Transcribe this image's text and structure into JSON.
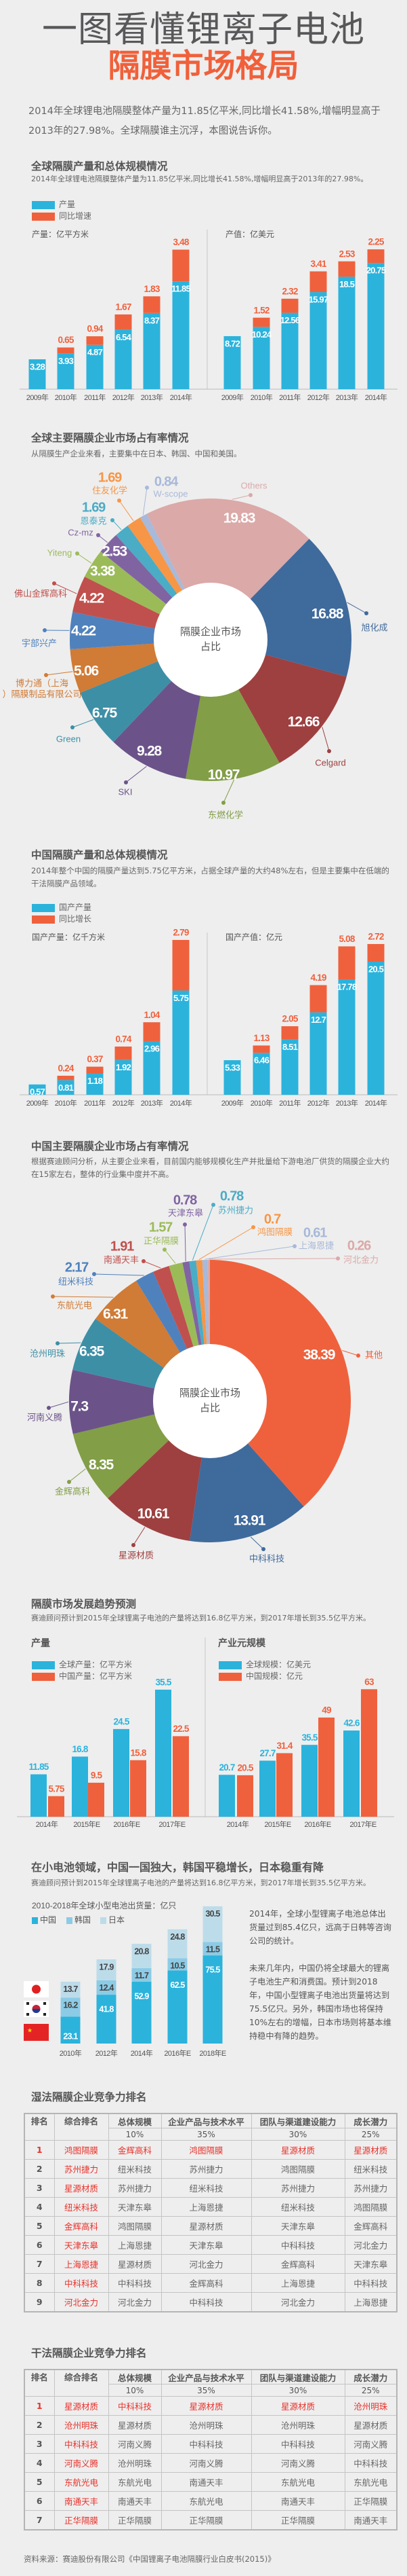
{
  "header": {
    "title_line1": "一图看懂锂离子电池",
    "title_line2": "隔膜市场格局"
  },
  "intro": "2014年全球锂电池隔膜整体产量为11.85亿平米,同比增长41.58%,增幅明显高于2013年的27.98%。全球隔膜谁主沉浮，本图说告诉你。",
  "colors": {
    "blue": "#2bb3dc",
    "orange": "#ef613d",
    "text": "#555555",
    "background": "#eeeeee"
  },
  "section_global_production": {
    "title": "全球隔膜产量和总体规模情况",
    "subtitle": "2014年全球锂电池隔膜整体产量为11.85亿平米,同比增长41.58%,增幅明显高于2013年的27.98%。",
    "legend": [
      "产量",
      "同比增速"
    ]
  },
  "section_global_share": {
    "title": "全球主要隔膜企业市场占有率情况",
    "subtitle": "从隔膜生产企业来看，主要集中在日本、韩国、中国和美国。",
    "center_label": [
      "隔膜企业市场",
      "占比"
    ]
  },
  "section_china_production": {
    "title": "中国隔膜产量和总体规模情况",
    "subtitle": "2014年整个中国的隔膜产量达到5.75亿平方米，占据全球产量的大约48%左右，但是主要集中在低端的干法隔膜产品领域。",
    "legend": [
      "国产产量",
      "同比增长"
    ]
  },
  "section_china_share": {
    "title": "中国主要隔膜企业市场占有率情况",
    "subtitle": "根据赛迪顾问分析，从主要企业来看，目前国内能够规模化生产并批量给下游电池厂供货的隔膜企业大约在15家左右，整体的行业集中度并不高。",
    "center_label": [
      "隔膜企业市场",
      "占比"
    ]
  },
  "section_forecast": {
    "title": "隔膜市场发展趋势预测",
    "subtitle": "赛迪顾问预计到2015年全球锂离子电池的产量将达到16.8亿平方米，到2017年增长到35.5亿平方米。",
    "left_title": "产量",
    "right_title": "产业元规模",
    "left_legend": [
      "全球产量：亿平方米",
      "中国产量：亿平方米"
    ],
    "right_legend": [
      "全球规模：亿美元",
      "中国规模：亿元"
    ]
  },
  "section_small_battery": {
    "title": "在小电池领域，中国一国独大，韩国平稳增长，日本稳重有降",
    "subtitle": "赛迪顾问预计到2015年全球锂离子电池的产量将达到16.8亿平方米，到2017年增长到35.5亿平方米。",
    "side_text_1": "2014年，全球小型锂离子电池总体出货量过到85.4亿只，远高于日韩等咨询公司的统计。",
    "side_text_2": "未来几年内，中国仍将全球最大的锂离子电池生产和消费国。预计到2018年，中国小型锂离子电池出货量将达到75.5亿只。另外，韩国市场也将保持10%左右的增幅，日本市场则将基本维持稳中有降的趋势。",
    "flags": [
      "japan-flag",
      "korea-flag",
      "china-flag"
    ]
  },
  "chart_data": [
    {
      "type": "bar",
      "stacked": true,
      "ylabel": "产量：亿平方米",
      "categories": [
        "2009年",
        "2010年",
        "2011年",
        "2012年",
        "2013年",
        "2014年"
      ],
      "series": [
        {
          "name": "产量",
          "values": [
            3.28,
            3.93,
            4.87,
            6.54,
            8.37,
            11.85
          ]
        },
        {
          "name": "同比增速",
          "values": [
            null,
            0.65,
            0.94,
            1.67,
            1.83,
            3.48
          ]
        }
      ]
    },
    {
      "type": "bar",
      "stacked": true,
      "ylabel": "产值：亿美元",
      "categories": [
        "2009年",
        "2010年",
        "2011年",
        "2012年",
        "2013年",
        "2014年"
      ],
      "series": [
        {
          "name": "产量",
          "values": [
            8.72,
            10.24,
            12.56,
            15.97,
            18.5,
            20.75
          ]
        },
        {
          "name": "同比增速",
          "values": [
            null,
            1.52,
            2.32,
            3.41,
            2.53,
            2.25
          ]
        }
      ]
    },
    {
      "type": "pie",
      "donut": true,
      "slices": [
        {
          "label": "Others",
          "value": 19.83,
          "color": "#dba9a8"
        },
        {
          "label": "旭化成",
          "value": 16.88,
          "color": "#3f6a9c"
        },
        {
          "label": "Celgard",
          "value": 12.66,
          "color": "#9e4040"
        },
        {
          "label": "东燃化学",
          "value": 10.97,
          "color": "#829e47"
        },
        {
          "label": "SKI",
          "value": 9.28,
          "color": "#6b5389"
        },
        {
          "label": "Green",
          "value": 6.75,
          "color": "#3d8fa6"
        },
        {
          "label": "博力通（上海）隔膜制品有限公司",
          "value": 5.06,
          "color": "#d07b36"
        },
        {
          "label": "宇部兴产",
          "value": 4.22,
          "color": "#4f81bd"
        },
        {
          "label": "佛山金辉高科",
          "value": 4.22,
          "color": "#c0504d"
        },
        {
          "label": "Yiteng",
          "value": 3.38,
          "color": "#9bbb59"
        },
        {
          "label": "Cz-mz",
          "value": 2.53,
          "color": "#8064a2"
        },
        {
          "label": "恩泰克",
          "value": 1.69,
          "color": "#4bacc6"
        },
        {
          "label": "住友化学",
          "value": 1.69,
          "color": "#f79646"
        },
        {
          "label": "W-scope",
          "value": 0.84,
          "color": "#a8b9d9"
        }
      ]
    },
    {
      "type": "bar",
      "stacked": true,
      "ylabel": "国产产量：亿千方米",
      "categories": [
        "2009年",
        "2010年",
        "2011年",
        "2012年",
        "2013年",
        "2014年"
      ],
      "series": [
        {
          "name": "国产产量",
          "values": [
            0.57,
            0.81,
            1.18,
            1.92,
            2.96,
            5.75
          ]
        },
        {
          "name": "同比增长",
          "values": [
            null,
            0.24,
            0.37,
            0.74,
            1.04,
            2.79
          ]
        }
      ]
    },
    {
      "type": "bar",
      "stacked": true,
      "ylabel": "国产产值：亿元",
      "categories": [
        "2009年",
        "2010年",
        "2011年",
        "2012年",
        "2013年",
        "2014年"
      ],
      "series": [
        {
          "name": "国产产量",
          "values": [
            5.33,
            6.46,
            8.51,
            12.7,
            17.78,
            20.5
          ]
        },
        {
          "name": "同比增长",
          "values": [
            null,
            1.13,
            2.05,
            4.19,
            5.08,
            2.72
          ]
        }
      ]
    },
    {
      "type": "pie",
      "donut": true,
      "slices": [
        {
          "label": "其他",
          "value": 38.39,
          "color": "#ef613d"
        },
        {
          "label": "中科科技",
          "value": 13.91,
          "color": "#3f6a9c"
        },
        {
          "label": "星源材质",
          "value": 10.61,
          "color": "#9e4040"
        },
        {
          "label": "金辉高科",
          "value": 8.35,
          "color": "#829e47"
        },
        {
          "label": "河南义腾",
          "value": 7.3,
          "color": "#6b5389"
        },
        {
          "label": "沧州明珠",
          "value": 6.35,
          "color": "#3d8fa6"
        },
        {
          "label": "东航光电",
          "value": 6.31,
          "color": "#d07b36"
        },
        {
          "label": "纽米科技",
          "value": 2.17,
          "color": "#4f81bd"
        },
        {
          "label": "南通天丰",
          "value": 1.91,
          "color": "#c0504d"
        },
        {
          "label": "正华隔膜",
          "value": 1.57,
          "color": "#9bbb59"
        },
        {
          "label": "天津东皋",
          "value": 0.78,
          "color": "#8064a2"
        },
        {
          "label": "苏州捷力",
          "value": 0.78,
          "color": "#4bacc6"
        },
        {
          "label": "鸿图隔膜",
          "value": 0.7,
          "color": "#f79646"
        },
        {
          "label": "上海恩捷",
          "value": 0.61,
          "color": "#a8b9d9"
        },
        {
          "label": "河北金力",
          "value": 0.26,
          "color": "#dba9a8"
        }
      ]
    },
    {
      "type": "bar",
      "grouped": true,
      "categories": [
        "2014年",
        "2015年E",
        "2016年E",
        "2017年E"
      ],
      "series": [
        {
          "name": "全球产量：亿平方米",
          "values": [
            11.85,
            16.8,
            24.5,
            35.5
          ]
        },
        {
          "name": "中国产量：亿平方米",
          "values": [
            5.75,
            9.5,
            15.8,
            22.5
          ]
        }
      ]
    },
    {
      "type": "bar",
      "grouped": true,
      "categories": [
        "2014年",
        "2015年E",
        "2016年E",
        "2017年E"
      ],
      "series": [
        {
          "name": "全球规模：亿美元",
          "values": [
            20.7,
            27.7,
            35.5,
            42.6
          ]
        },
        {
          "name": "中国规模：亿元",
          "values": [
            20.5,
            31.4,
            49,
            63
          ]
        }
      ]
    },
    {
      "type": "bar",
      "stacked": true,
      "title": "2010-2018年全球小型电池出货量：亿只",
      "categories": [
        "2010年",
        "2012年",
        "2014年",
        "2016年E",
        "2018年E"
      ],
      "series": [
        {
          "name": "中国",
          "values": [
            23.1,
            41.8,
            52.9,
            62.5,
            75.5
          ],
          "color": "#2bb3dc"
        },
        {
          "name": "韩国",
          "values": [
            16.2,
            12.4,
            11.7,
            10.5,
            11.5
          ],
          "color": "#8ccbe6"
        },
        {
          "name": "日本",
          "values": [
            13.7,
            17.9,
            20.8,
            24.8,
            30.5
          ],
          "color": "#bddcea"
        }
      ]
    }
  ],
  "wet_ranking": {
    "title": "湿法隔膜企业竞争力排名",
    "headers": [
      "排名",
      "综合排名",
      "总体规模",
      "企业产品与技术水平",
      "团队与渠道建设能力",
      "成长潜力"
    ],
    "weights": [
      "10%",
      "35%",
      "30%",
      "25%"
    ],
    "rows": [
      [
        "1",
        "鸿图隔膜",
        "金辉高科",
        "鸿图隔膜",
        "星源材质",
        "星源材质"
      ],
      [
        "2",
        "苏州捷力",
        "纽米科技",
        "苏州捷力",
        "鸿图隔膜",
        "纽米科技"
      ],
      [
        "3",
        "星源材质",
        "苏州捷力",
        "纽米科技",
        "苏州捷力",
        "苏州捷力"
      ],
      [
        "4",
        "纽米科技",
        "天津东皋",
        "上海恩捷",
        "纽米科技",
        "鸿图隔膜"
      ],
      [
        "5",
        "金辉高科",
        "鸿图隔膜",
        "星源材质",
        "天津东皋",
        "金辉高科"
      ],
      [
        "6",
        "天津东皋",
        "上海恩捷",
        "天津东皋",
        "中科科技",
        "河北金力"
      ],
      [
        "7",
        "上海恩捷",
        "星源材质",
        "河北金力",
        "金辉高科",
        "天津东皋"
      ],
      [
        "8",
        "中科科技",
        "中科科技",
        "金辉高科",
        "上海恩捷",
        "中科科技"
      ],
      [
        "9",
        "河北金力",
        "河北金力",
        "中科科技",
        "河北金力",
        "上海恩捷"
      ]
    ]
  },
  "dry_ranking": {
    "title": "干法隔膜企业竞争力排名",
    "headers": [
      "排名",
      "综合排名",
      "总体规模",
      "企业产品与技术水平",
      "团队与渠道建设能力",
      "成长潜力"
    ],
    "weights": [
      "10%",
      "35%",
      "30%",
      "25%"
    ],
    "rows": [
      [
        "1",
        "星源材质",
        "中科科技",
        "星源材质",
        "星源材质",
        "沧州明珠"
      ],
      [
        "2",
        "沧州明珠",
        "星源材质",
        "沧州明珠",
        "沧州明珠",
        "星源材质"
      ],
      [
        "3",
        "中科科技",
        "河南义腾",
        "中科科技",
        "中科科技",
        "河南义腾"
      ],
      [
        "4",
        "河南义腾",
        "沧州明珠",
        "河南义腾",
        "河南义腾",
        "中科科技"
      ],
      [
        "5",
        "东航光电",
        "东航光电",
        "南通天丰",
        "东航光电",
        "东航光电"
      ],
      [
        "6",
        "南通天丰",
        "南通天丰",
        "东航光电",
        "南通天丰",
        "正华隔膜"
      ],
      [
        "7",
        "正华隔膜",
        "正华隔膜",
        "正华隔膜",
        "正华隔膜",
        "南通天丰"
      ]
    ]
  },
  "footer": {
    "source": "资料来源：赛迪股份有限公司《中国锂离子电池隔膜行业白皮书(2015)》"
  }
}
